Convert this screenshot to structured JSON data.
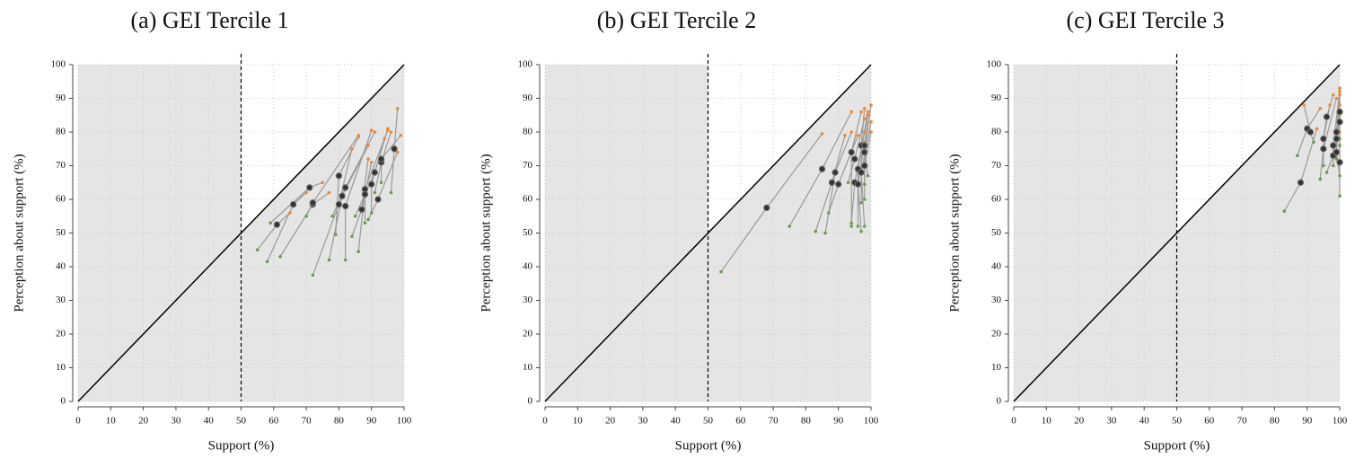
{
  "chart_data": [
    {
      "type": "scatter",
      "title": "(a) GEI Tercile 1",
      "xlabel": "Support (%)",
      "ylabel": "Perception about support (%)",
      "xlim": [
        0,
        100
      ],
      "ylim": [
        0,
        100
      ],
      "xticks": [
        0,
        10,
        20,
        30,
        40,
        50,
        60,
        70,
        80,
        90,
        100
      ],
      "yticks": [
        0,
        10,
        20,
        30,
        40,
        50,
        60,
        70,
        80,
        90,
        100
      ],
      "grid": true,
      "vline": 50,
      "series": [
        {
          "color": "#6b9a50",
          "x": [
            55,
            58,
            59,
            62,
            70,
            72,
            79,
            77,
            82,
            78,
            84,
            86,
            88,
            90,
            85,
            89,
            91,
            93,
            96
          ],
          "y": [
            45,
            41.5,
            53,
            43,
            55,
            37.5,
            49.5,
            42,
            42,
            55,
            49,
            44.5,
            53,
            56,
            55,
            54,
            62,
            65,
            62
          ]
        },
        {
          "color": "#333333",
          "x": [
            61,
            66,
            71,
            72,
            72,
            80,
            80,
            81,
            82,
            82,
            87,
            88,
            88,
            90,
            91,
            92,
            93,
            93,
            97
          ],
          "y": [
            52.5,
            58.5,
            63.5,
            58.5,
            59,
            58.5,
            67,
            61,
            58,
            63.5,
            57,
            63,
            61.5,
            64.5,
            68,
            60,
            71,
            72,
            75
          ]
        },
        {
          "color": "#e8893a",
          "x": [
            65,
            70,
            75,
            77,
            86,
            84,
            86,
            89,
            90,
            91,
            89,
            95,
            90,
            94,
            95,
            98,
            96,
            99,
            98
          ],
          "y": [
            56,
            62,
            65,
            62,
            79,
            75,
            78.5,
            76,
            80.5,
            80,
            72,
            80.5,
            71,
            78,
            81,
            74,
            80,
            79,
            87
          ]
        }
      ]
    },
    {
      "type": "scatter",
      "title": "(b) GEI Tercile 2",
      "xlabel": "Support (%)",
      "ylabel": "Perception about support (%)",
      "xlim": [
        0,
        100
      ],
      "ylim": [
        0,
        100
      ],
      "xticks": [
        0,
        10,
        20,
        30,
        40,
        50,
        60,
        70,
        80,
        90,
        100
      ],
      "yticks": [
        0,
        10,
        20,
        30,
        40,
        50,
        60,
        70,
        80,
        90,
        100
      ],
      "grid": true,
      "vline": 50,
      "series": [
        {
          "color": "#6b9a50",
          "x": [
            54,
            75,
            83,
            86,
            87,
            94,
            93,
            94,
            96,
            97,
            97,
            98,
            98,
            99,
            98
          ],
          "y": [
            38.5,
            52,
            50.5,
            50,
            56,
            52,
            65,
            53,
            52,
            50.5,
            59,
            52,
            64.5,
            67,
            60
          ]
        },
        {
          "color": "#333333",
          "x": [
            68,
            85,
            88,
            89,
            90,
            94,
            95,
            95,
            96,
            96,
            97,
            97,
            98,
            98,
            98
          ],
          "y": [
            57.5,
            69,
            65,
            68,
            64.5,
            74,
            72,
            65,
            69,
            64.5,
            76,
            68,
            74,
            76,
            70
          ]
        },
        {
          "color": "#e8893a",
          "x": [
            85,
            94,
            92,
            94,
            96,
            97,
            98,
            98,
            99,
            98,
            98,
            100,
            100,
            99,
            100
          ],
          "y": [
            79.5,
            86,
            79,
            80,
            79,
            86,
            84,
            80,
            86,
            77,
            87,
            83,
            88,
            85,
            80
          ]
        }
      ]
    },
    {
      "type": "scatter",
      "title": "(c) GEI Tercile 3",
      "xlabel": "Support (%)",
      "ylabel": "Perception about support (%)",
      "xlim": [
        0,
        100
      ],
      "ylim": [
        0,
        100
      ],
      "xticks": [
        0,
        10,
        20,
        30,
        40,
        50,
        60,
        70,
        80,
        90,
        100
      ],
      "yticks": [
        0,
        10,
        20,
        30,
        40,
        50,
        60,
        70,
        80,
        90,
        100
      ],
      "grid": true,
      "vline": 50,
      "series": [
        {
          "color": "#6b9a50",
          "x": [
            83,
            87,
            95,
            94,
            95,
            96,
            98,
            99,
            99,
            100,
            100,
            100,
            100,
            92
          ],
          "y": [
            56.5,
            73,
            70,
            66,
            78,
            68,
            70,
            72,
            74,
            78,
            61,
            67,
            76,
            77
          ]
        },
        {
          "color": "#333333",
          "x": [
            88,
            90,
            95,
            95,
            96,
            98,
            98,
            99,
            99,
            100,
            100,
            99,
            100,
            91
          ],
          "y": [
            65,
            81,
            78,
            75,
            84.5,
            73,
            76,
            78,
            80,
            86,
            71,
            74,
            83,
            80
          ]
        },
        {
          "color": "#e8893a",
          "x": [
            93,
            94,
            97,
            99,
            98,
            100,
            100,
            100,
            100,
            100,
            100,
            100,
            100,
            89
          ],
          "y": [
            81,
            87,
            88,
            90,
            91,
            85,
            92,
            93,
            91,
            93,
            80,
            88,
            92,
            88
          ]
        }
      ]
    }
  ]
}
